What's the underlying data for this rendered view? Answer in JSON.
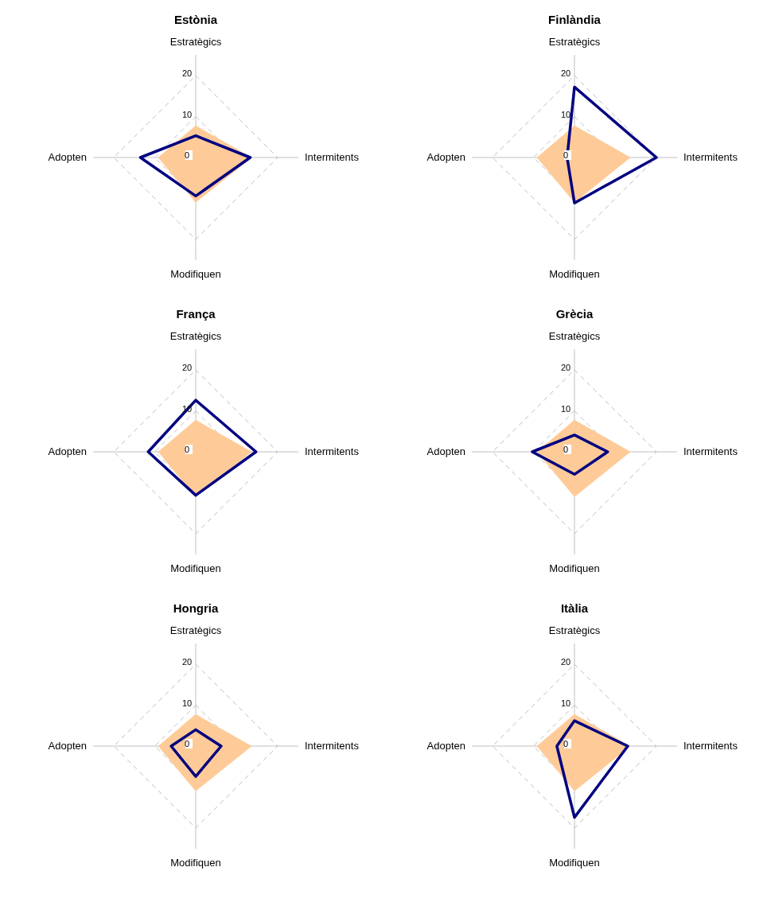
{
  "chart_data": [
    {
      "type": "radar",
      "title": "Estònia",
      "categories": [
        "Estratègics",
        "Intermitents",
        "Modifiquen",
        "Adopten"
      ],
      "ylim": [
        0,
        20
      ],
      "yticks": [
        0,
        10,
        20
      ],
      "grid": true,
      "series": [
        {
          "type": "area",
          "color": "#fecb98",
          "values": [
            7.8,
            13.7,
            11,
            9.2
          ]
        },
        {
          "color": "#000080",
          "values": [
            5.3,
            13.3,
            9.4,
            13.5
          ]
        }
      ]
    },
    {
      "type": "radar",
      "title": "Finlàndia",
      "categories": [
        "Estratègics",
        "Intermitents",
        "Modifiquen",
        "Adopten"
      ],
      "ylim": [
        0,
        20
      ],
      "yticks": [
        0,
        10,
        20
      ],
      "grid": true,
      "series": [
        {
          "type": "area",
          "color": "#fecb98",
          "values": [
            7.8,
            13.7,
            11,
            9.2
          ]
        },
        {
          "color": "#000080",
          "values": [
            17.2,
            20,
            11.1,
            1.8
          ]
        }
      ]
    },
    {
      "type": "radar",
      "title": "França",
      "categories": [
        "Estratègics",
        "Intermitents",
        "Modifiquen",
        "Adopten"
      ],
      "ylim": [
        0,
        20
      ],
      "yticks": [
        0,
        10,
        20
      ],
      "grid": true,
      "series": [
        {
          "type": "area",
          "color": "#fecb98",
          "values": [
            7.8,
            13.7,
            11,
            9.2
          ]
        },
        {
          "color": "#000080",
          "values": [
            12.6,
            14.7,
            10.6,
            11.6
          ]
        }
      ]
    },
    {
      "type": "radar",
      "title": "Grècia",
      "categories": [
        "Estratègics",
        "Intermitents",
        "Modifiquen",
        "Adopten"
      ],
      "ylim": [
        0,
        20
      ],
      "yticks": [
        0,
        10,
        20
      ],
      "grid": true,
      "series": [
        {
          "type": "area",
          "color": "#fecb98",
          "values": [
            7.8,
            13.7,
            11,
            9.2
          ]
        },
        {
          "color": "#000080",
          "values": [
            4.1,
            8.1,
            5.5,
            10.3
          ]
        }
      ]
    },
    {
      "type": "radar",
      "title": "Hongria",
      "categories": [
        "Estratègics",
        "Intermitents",
        "Modifiquen",
        "Adopten"
      ],
      "ylim": [
        0,
        20
      ],
      "yticks": [
        0,
        10,
        20
      ],
      "grid": true,
      "series": [
        {
          "type": "area",
          "color": "#fecb98",
          "values": [
            7.8,
            13.7,
            11,
            9.2
          ]
        },
        {
          "color": "#000080",
          "values": [
            4,
            6.2,
            7.4,
            6
          ]
        }
      ]
    },
    {
      "type": "radar",
      "title": "Itàlia",
      "categories": [
        "Estratègics",
        "Intermitents",
        "Modifiquen",
        "Adopten"
      ],
      "ylim": [
        0,
        20
      ],
      "yticks": [
        0,
        10,
        20
      ],
      "grid": true,
      "series": [
        {
          "type": "area",
          "color": "#fecb98",
          "values": [
            7.8,
            13.7,
            11,
            9.2
          ]
        },
        {
          "color": "#000080",
          "values": [
            6.2,
            13,
            17.4,
            4.3
          ]
        }
      ]
    }
  ]
}
